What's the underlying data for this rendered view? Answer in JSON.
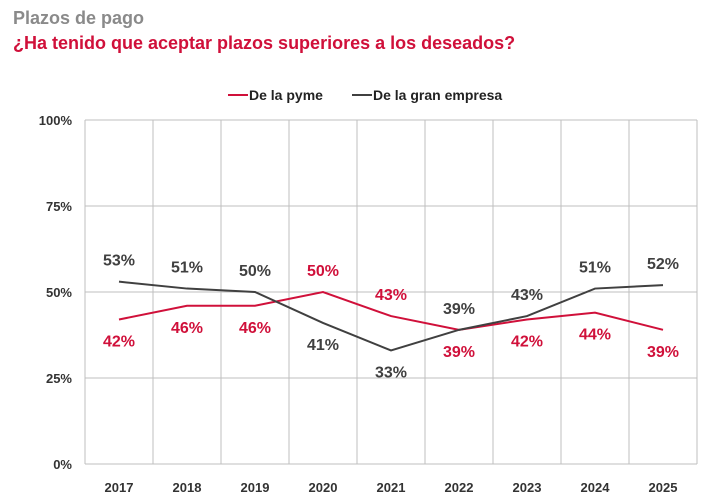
{
  "chart_data": {
    "type": "line",
    "title": "Plazos de pago",
    "subtitle": "¿Ha tenido que aceptar plazos superiores a los deseados?",
    "xlabel": "",
    "ylabel": "",
    "categories": [
      "2017",
      "2018",
      "2019",
      "2020",
      "2021",
      "2022",
      "2023",
      "2024",
      "2025"
    ],
    "yticks": [
      "0%",
      "25%",
      "50%",
      "75%",
      "100%"
    ],
    "ylim": [
      0,
      100
    ],
    "grid": true,
    "legend_position": "top",
    "series": [
      {
        "name": "De la pyme",
        "color": "#d0103a",
        "values": [
          42,
          46,
          46,
          50,
          43,
          39,
          42,
          44,
          39
        ],
        "labels": [
          "42%",
          "46%",
          "46%",
          "50%",
          "43%",
          "39%",
          "42%",
          "44%",
          "39%"
        ]
      },
      {
        "name": "De la gran empresa",
        "color": "#404040",
        "values": [
          53,
          51,
          50,
          41,
          33,
          39,
          43,
          51,
          52
        ],
        "labels": [
          "53%",
          "51%",
          "50%",
          "41%",
          "33%",
          "39%",
          "43%",
          "51%",
          "52%"
        ]
      }
    ]
  }
}
